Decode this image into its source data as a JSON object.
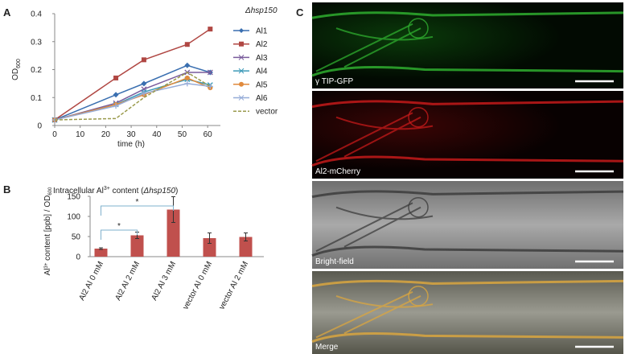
{
  "chart_data": [
    {
      "type": "line",
      "panel": "A",
      "title": "Δhsp150",
      "xlabel": "time (h)",
      "ylabel": {
        "text": "OD",
        "subscript": "600"
      },
      "x": [
        0,
        24,
        35,
        52,
        61
      ],
      "series": [
        {
          "name": "Al1",
          "color": "#3a6fb0",
          "marker": "diamond",
          "dash": false,
          "values": [
            0.02,
            0.11,
            0.15,
            0.215,
            0.19
          ]
        },
        {
          "name": "Al2",
          "color": "#b04743",
          "marker": "square",
          "dash": false,
          "values": [
            0.02,
            0.17,
            0.235,
            0.29,
            0.345
          ]
        },
        {
          "name": "Al3",
          "color": "#7a5c9c",
          "marker": "x",
          "dash": false,
          "values": [
            0.02,
            0.08,
            0.13,
            0.19,
            0.19
          ]
        },
        {
          "name": "Al4",
          "color": "#3d9ab8",
          "marker": "x",
          "dash": false,
          "values": [
            0.02,
            0.075,
            0.12,
            0.165,
            0.145
          ]
        },
        {
          "name": "Al5",
          "color": "#e08a3c",
          "marker": "circle",
          "dash": false,
          "values": [
            0.02,
            0.075,
            0.11,
            0.17,
            0.135
          ]
        },
        {
          "name": "Al6",
          "color": "#96acd8",
          "marker": "plus",
          "dash": false,
          "values": [
            0.02,
            0.07,
            0.115,
            0.15,
            0.14
          ]
        },
        {
          "name": "vector",
          "color": "#9a9a4c",
          "marker": "none",
          "dash": true,
          "values": [
            0.02,
            0.025,
            0.1,
            0.19,
            0.14
          ]
        }
      ],
      "xlim": [
        0,
        65
      ],
      "xticks": [
        0,
        10,
        20,
        30,
        40,
        50,
        60
      ],
      "ylim": [
        0,
        0.4
      ],
      "yticks": [
        0,
        0.1,
        0.2,
        0.3,
        0.4
      ],
      "grid": false,
      "legend": "right"
    },
    {
      "type": "bar",
      "panel": "B",
      "title": {
        "pre": "Intracellular Al",
        "sup": "3+",
        "mid": " content (",
        "italic": "Δhsp150",
        "end": ")"
      },
      "ylabel": {
        "pre": "Al",
        "sup": "3+",
        "mid": " content [ppb] / OD",
        "sub": "600"
      },
      "categories": [
        "Al2 Al 0 mM",
        "Al2 Al 2 mM",
        "Al2 Al 3 mM",
        "vector Al 0 mM",
        "vector Al 2 mM"
      ],
      "values": [
        20,
        53,
        117,
        46,
        49
      ],
      "errors": [
        2,
        8,
        32,
        13,
        10
      ],
      "color": "#c0504d",
      "ylim": [
        0,
        150
      ],
      "yticks": [
        0,
        50,
        100,
        150
      ],
      "grid": false,
      "significance": [
        {
          "label": "*",
          "pair": [
            "Al2 Al 0 mM",
            "Al2 Al 2 mM"
          ]
        },
        {
          "label": "*",
          "pair": [
            "Al2 Al 0 mM",
            "Al2 Al 3 mM"
          ]
        }
      ]
    }
  ],
  "panel_c": {
    "letter": "C",
    "images": [
      {
        "label": "γ TIP-GFP",
        "channel": "green"
      },
      {
        "label": "Al2-mCherry",
        "channel": "red"
      },
      {
        "label": "Bright-field",
        "channel": "gray"
      },
      {
        "label": "Merge",
        "channel": "merge"
      }
    ]
  }
}
